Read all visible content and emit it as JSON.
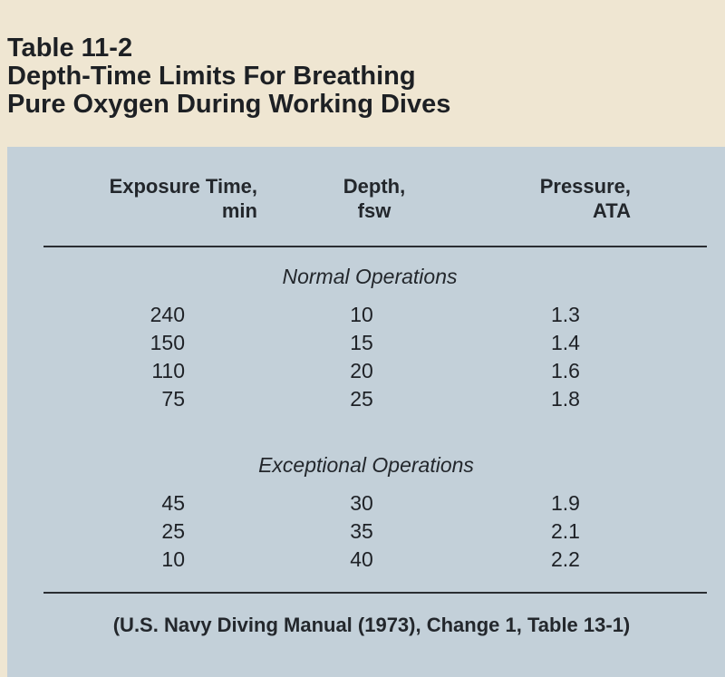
{
  "caption": {
    "line1": "Table 11-2",
    "line2": "Depth-Time Limits For Breathing",
    "line3": "Pure Oxygen During Working Dives"
  },
  "headers": {
    "exposure_line1": "Exposure Time,",
    "exposure_line2": "min",
    "depth_line1": "Depth,",
    "depth_line2": "fsw",
    "pressure_line1": "Pressure,",
    "pressure_line2": "ATA"
  },
  "sections": {
    "normal": {
      "title": "Normal Operations",
      "rows": [
        {
          "time": "240",
          "depth": "10",
          "pressure": "1.3"
        },
        {
          "time": "150",
          "depth": "15",
          "pressure": "1.4"
        },
        {
          "time": "110",
          "depth": "20",
          "pressure": "1.6"
        },
        {
          "time": "75",
          "depth": "25",
          "pressure": "1.8"
        }
      ]
    },
    "exceptional": {
      "title": "Exceptional Operations",
      "rows": [
        {
          "time": "45",
          "depth": "30",
          "pressure": "1.9"
        },
        {
          "time": "25",
          "depth": "35",
          "pressure": "2.1"
        },
        {
          "time": "10",
          "depth": "40",
          "pressure": "2.2"
        }
      ]
    }
  },
  "source": "(U.S. Navy Diving Manual (1973), Change 1, Table 13-1)",
  "colors": {
    "page": "#efe6d2",
    "panel": "#c3d0d9",
    "text": "#1e2126"
  }
}
